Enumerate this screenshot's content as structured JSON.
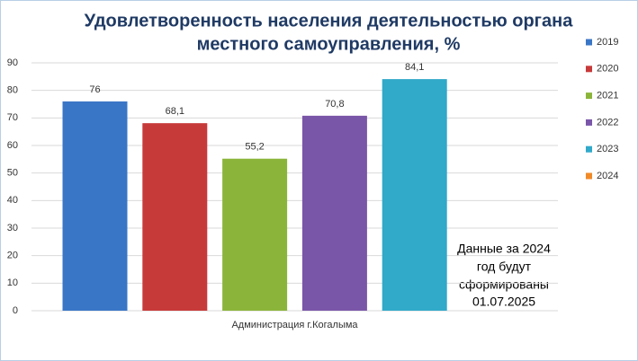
{
  "chart_data": {
    "type": "bar",
    "title": [
      "Удовлетворенность населения деятельностью органа",
      "местного самоуправления, %"
    ],
    "categories": [
      "Администрация г.Когалыма"
    ],
    "series": [
      {
        "name": "2019",
        "color": "#3a76c6",
        "values": [
          76
        ],
        "value_labels": [
          "76"
        ]
      },
      {
        "name": "2020",
        "color": "#c73a3a",
        "values": [
          68.1
        ],
        "value_labels": [
          "68,1"
        ]
      },
      {
        "name": "2021",
        "color": "#8bb53a",
        "values": [
          55.2
        ],
        "value_labels": [
          "55,2"
        ]
      },
      {
        "name": "2022",
        "color": "#7a56a8",
        "values": [
          70.8
        ],
        "value_labels": [
          "70,8"
        ]
      },
      {
        "name": "2023",
        "color": "#31a9c9",
        "values": [
          84.1
        ],
        "value_labels": [
          "84,1"
        ]
      },
      {
        "name": "2024",
        "color": "#f08a28",
        "values": [
          null
        ]
      }
    ],
    "ylim": [
      0,
      90
    ],
    "yticks": [
      0,
      10,
      20,
      30,
      40,
      50,
      60,
      70,
      80,
      90
    ],
    "grid": true,
    "legend": "right",
    "annotation": [
      "Данные за 2024",
      "год  будут",
      "сформированы",
      "01.07.2025"
    ]
  }
}
